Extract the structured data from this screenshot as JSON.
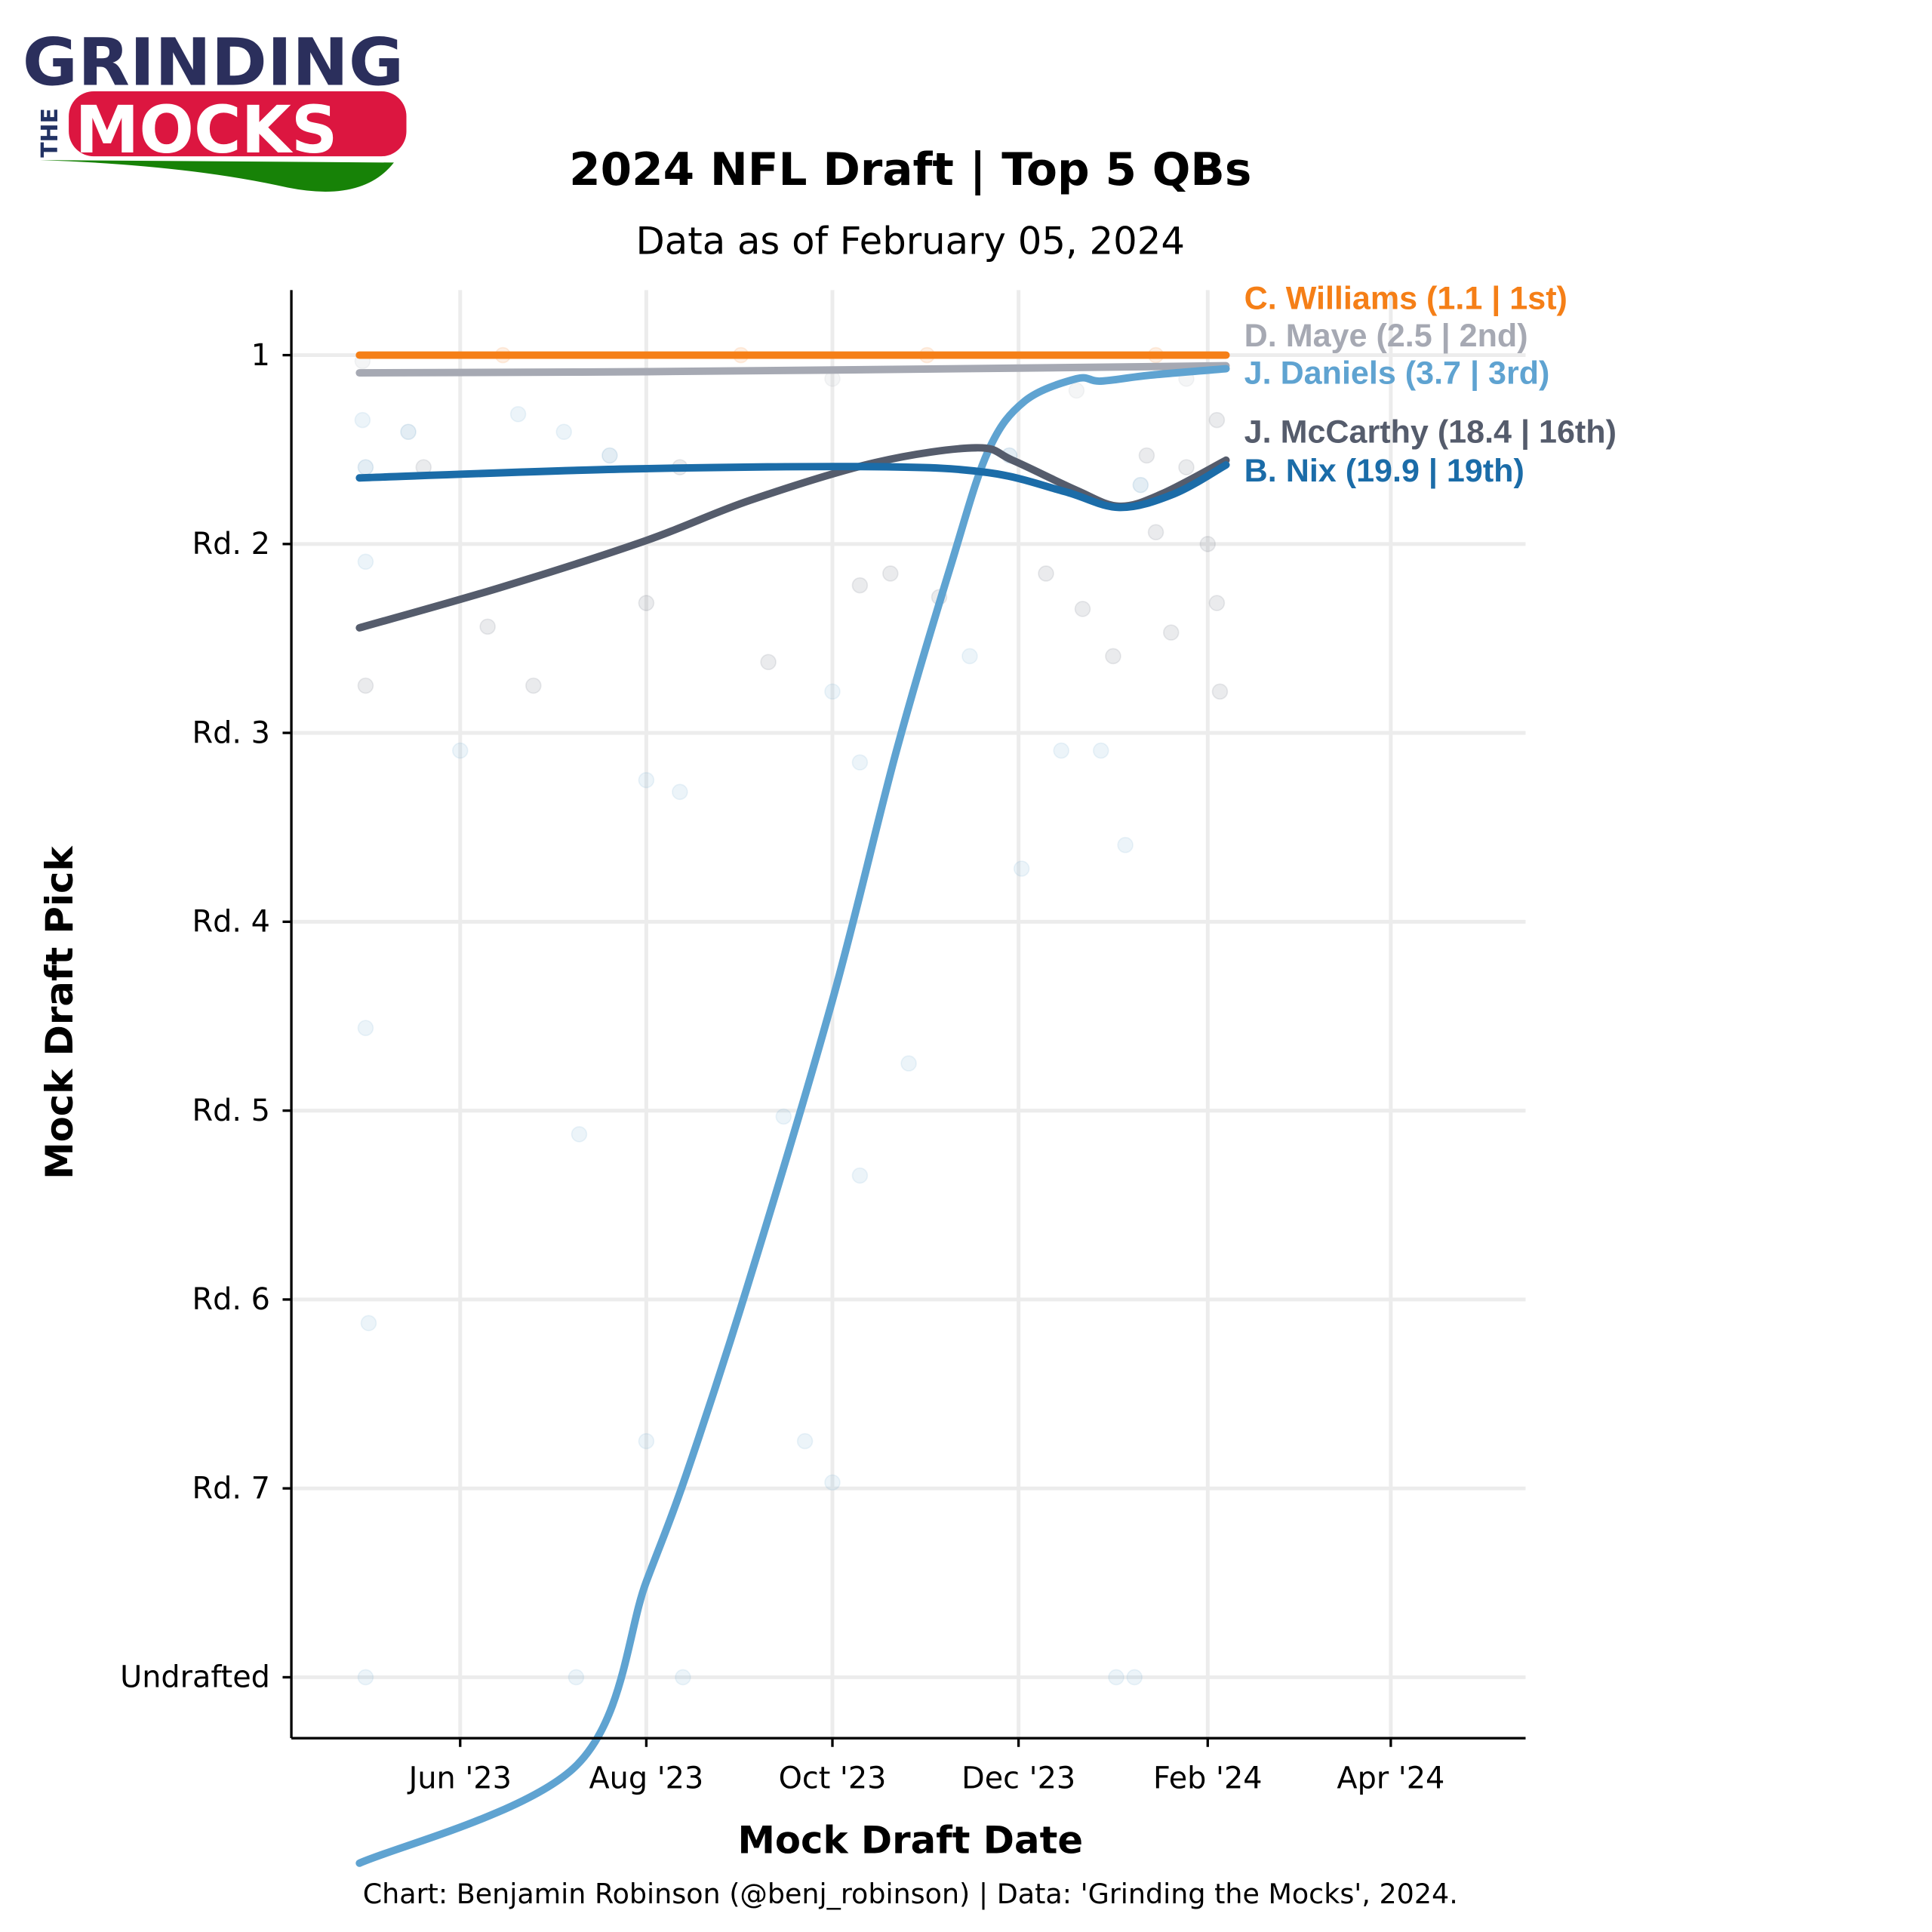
{
  "logo": {
    "line1": "GRINDING",
    "the": "THE",
    "line2": "MOCKS"
  },
  "chart_data": {
    "type": "line",
    "title": "2024 NFL Draft | Top 5 QBs",
    "subtitle": "Data as of February 05, 2024",
    "xlabel": "Mock Draft Date",
    "ylabel": "Mock Draft Pick",
    "caption": "Chart: Benjamin Robinson (@benj_robinson) | Data: 'Grinding the Mocks', 2024.",
    "xlim": [
      "2023-04-20",
      "2024-05-20"
    ],
    "ylim": [
      260,
      -10
    ],
    "grid": true,
    "x_ticks": [
      {
        "date": "2023-06-01",
        "label": "Jun '23"
      },
      {
        "date": "2023-08-01",
        "label": "Aug '23"
      },
      {
        "date": "2023-10-01",
        "label": "Oct '23"
      },
      {
        "date": "2023-12-01",
        "label": "Dec '23"
      },
      {
        "date": "2024-02-01",
        "label": "Feb '24"
      },
      {
        "date": "2024-04-01",
        "label": "Apr '24"
      }
    ],
    "y_ticks": [
      {
        "pick": 1,
        "label": "1"
      },
      {
        "pick": 33,
        "label": "Rd. 2"
      },
      {
        "pick": 65,
        "label": "Rd. 3"
      },
      {
        "pick": 97,
        "label": "Rd. 4"
      },
      {
        "pick": 129,
        "label": "Rd. 5"
      },
      {
        "pick": 161,
        "label": "Rd. 6"
      },
      {
        "pick": 193,
        "label": "Rd. 7"
      },
      {
        "pick": 225,
        "label": "Undrafted"
      }
    ],
    "series": [
      {
        "name": "C. Williams",
        "label": "C. Williams (1.1 | 1st)",
        "color": "#f57f17",
        "points": [
          [
            "2023-04-29",
            1
          ],
          [
            "2023-08-01",
            1
          ],
          [
            "2023-12-01",
            1
          ],
          [
            "2024-02-07",
            1
          ]
        ]
      },
      {
        "name": "D. Maye",
        "label": "D. Maye (2.5 | 2nd)",
        "color": "#a6a9b3",
        "points": [
          [
            "2023-04-29",
            4
          ],
          [
            "2023-08-01",
            3.8
          ],
          [
            "2023-12-01",
            3.2
          ],
          [
            "2024-02-07",
            2.8
          ]
        ]
      },
      {
        "name": "J. Daniels",
        "label": "J. Daniels (3.7 | 3rd)",
        "color": "#5fa3d1",
        "points": [
          [
            "2023-04-29",
            256.5
          ],
          [
            "2023-07-09",
            240
          ],
          [
            "2023-08-01",
            208.8
          ],
          [
            "2023-08-14",
            190.8
          ],
          [
            "2023-09-03",
            159
          ],
          [
            "2023-10-01",
            110.3
          ],
          [
            "2023-10-22",
            68
          ],
          [
            "2023-11-09",
            36.3
          ],
          [
            "2023-11-21",
            17.3
          ],
          [
            "2023-12-03",
            8.8
          ],
          [
            "2023-12-20",
            5
          ],
          [
            "2023-12-28",
            5.4
          ],
          [
            "2024-01-13",
            4.4
          ],
          [
            "2024-02-07",
            3.3
          ]
        ]
      },
      {
        "name": "J. McCarthy",
        "label": "J. McCarthy (18.4 | 16th)",
        "color": "#555c6c",
        "points": [
          [
            "2023-04-29",
            47.2
          ],
          [
            "2023-06-14",
            40.4
          ],
          [
            "2023-08-01",
            32.4
          ],
          [
            "2023-09-04",
            25.6
          ],
          [
            "2023-10-15",
            19.2
          ],
          [
            "2023-11-17",
            16.7
          ],
          [
            "2023-11-29",
            18.8
          ],
          [
            "2023-12-20",
            23.9
          ],
          [
            "2024-01-03",
            26.6
          ],
          [
            "2024-01-17",
            24.5
          ],
          [
            "2024-02-07",
            18.8
          ]
        ]
      },
      {
        "name": "B. Nix",
        "label": "B. Nix (19.9 | 19th)",
        "color": "#1b6ca8",
        "points": [
          [
            "2023-04-29",
            21.8
          ],
          [
            "2023-07-25",
            20.3
          ],
          [
            "2023-10-15",
            19.9
          ],
          [
            "2023-11-21",
            20.9
          ],
          [
            "2023-12-16",
            24.1
          ],
          [
            "2024-01-03",
            26.8
          ],
          [
            "2024-01-21",
            24.5
          ],
          [
            "2024-02-07",
            19.6
          ]
        ]
      }
    ],
    "scatter": [
      [
        "2023-04-30",
        2,
        "D. Maye"
      ],
      [
        "2023-04-30",
        12,
        "J. Daniels"
      ],
      [
        "2023-05-01",
        20,
        "B. Nix"
      ],
      [
        "2023-05-01",
        36,
        "J. Daniels"
      ],
      [
        "2023-05-01",
        57,
        "J. McCarthy"
      ],
      [
        "2023-05-01",
        115,
        "J. Daniels"
      ],
      [
        "2023-05-02",
        165,
        "J. Daniels"
      ],
      [
        "2023-05-01",
        225,
        "J. Daniels"
      ],
      [
        "2023-05-15",
        14,
        "B. Nix"
      ],
      [
        "2023-05-20",
        20,
        "J. McCarthy"
      ],
      [
        "2023-06-01",
        68,
        "J. Daniels"
      ],
      [
        "2023-06-10",
        47,
        "J. McCarthy"
      ],
      [
        "2023-06-20",
        11,
        "J. Daniels"
      ],
      [
        "2023-06-25",
        57,
        "J. McCarthy"
      ],
      [
        "2023-07-05",
        14,
        "J. Daniels"
      ],
      [
        "2023-07-10",
        133,
        "J. Daniels"
      ],
      [
        "2023-07-09",
        225,
        "J. Daniels"
      ],
      [
        "2023-07-20",
        18,
        "B. Nix"
      ],
      [
        "2023-08-01",
        43,
        "J. McCarthy"
      ],
      [
        "2023-08-01",
        73,
        "J. Daniels"
      ],
      [
        "2023-08-01",
        185,
        "J. Daniels"
      ],
      [
        "2023-08-12",
        20,
        "J. McCarthy"
      ],
      [
        "2023-08-12",
        75,
        "J. Daniels"
      ],
      [
        "2023-08-13",
        225,
        "J. Daniels"
      ],
      [
        "2023-09-10",
        53,
        "J. McCarthy"
      ],
      [
        "2023-09-15",
        130,
        "J. Daniels"
      ],
      [
        "2023-09-22",
        185,
        "J. Daniels"
      ],
      [
        "2023-10-01",
        58,
        "J. Daniels"
      ],
      [
        "2023-10-01",
        192,
        "J. Daniels"
      ],
      [
        "2023-10-10",
        40,
        "J. McCarthy"
      ],
      [
        "2023-10-10",
        70,
        "J. Daniels"
      ],
      [
        "2023-10-10",
        140,
        "J. Daniels"
      ],
      [
        "2023-10-20",
        38,
        "J. McCarthy"
      ],
      [
        "2023-10-26",
        121,
        "J. Daniels"
      ],
      [
        "2023-11-05",
        42,
        "J. McCarthy"
      ],
      [
        "2023-11-15",
        52,
        "J. Daniels"
      ],
      [
        "2023-11-28",
        18,
        "B. Nix"
      ],
      [
        "2023-12-02",
        88,
        "J. Daniels"
      ],
      [
        "2023-12-10",
        38,
        "J. McCarthy"
      ],
      [
        "2023-12-15",
        68,
        "J. Daniels"
      ],
      [
        "2023-12-22",
        44,
        "J. McCarthy"
      ],
      [
        "2023-12-28",
        68,
        "J. Daniels"
      ],
      [
        "2024-01-01",
        52,
        "J. McCarthy"
      ],
      [
        "2024-01-02",
        225,
        "J. Daniels"
      ],
      [
        "2024-01-05",
        84,
        "J. Daniels"
      ],
      [
        "2024-01-08",
        225,
        "J. Daniels"
      ],
      [
        "2024-01-10",
        23,
        "B. Nix"
      ],
      [
        "2024-01-12",
        18,
        "J. McCarthy"
      ],
      [
        "2024-01-15",
        31,
        "J. McCarthy"
      ],
      [
        "2024-01-20",
        48,
        "J. McCarthy"
      ],
      [
        "2024-01-25",
        20,
        "J. McCarthy"
      ],
      [
        "2024-02-01",
        33,
        "J. McCarthy"
      ],
      [
        "2024-02-04",
        12,
        "J. McCarthy"
      ],
      [
        "2024-02-04",
        43,
        "J. McCarthy"
      ],
      [
        "2024-02-05",
        58,
        "J. McCarthy"
      ],
      [
        "2023-06-15",
        1,
        "C. Williams"
      ],
      [
        "2023-09-01",
        1,
        "C. Williams"
      ],
      [
        "2023-11-01",
        1,
        "C. Williams"
      ],
      [
        "2024-01-15",
        1,
        "C. Williams"
      ],
      [
        "2023-10-01",
        5,
        "D. Maye"
      ],
      [
        "2023-12-20",
        7,
        "D. Maye"
      ],
      [
        "2024-01-25",
        5,
        "D. Maye"
      ]
    ]
  }
}
